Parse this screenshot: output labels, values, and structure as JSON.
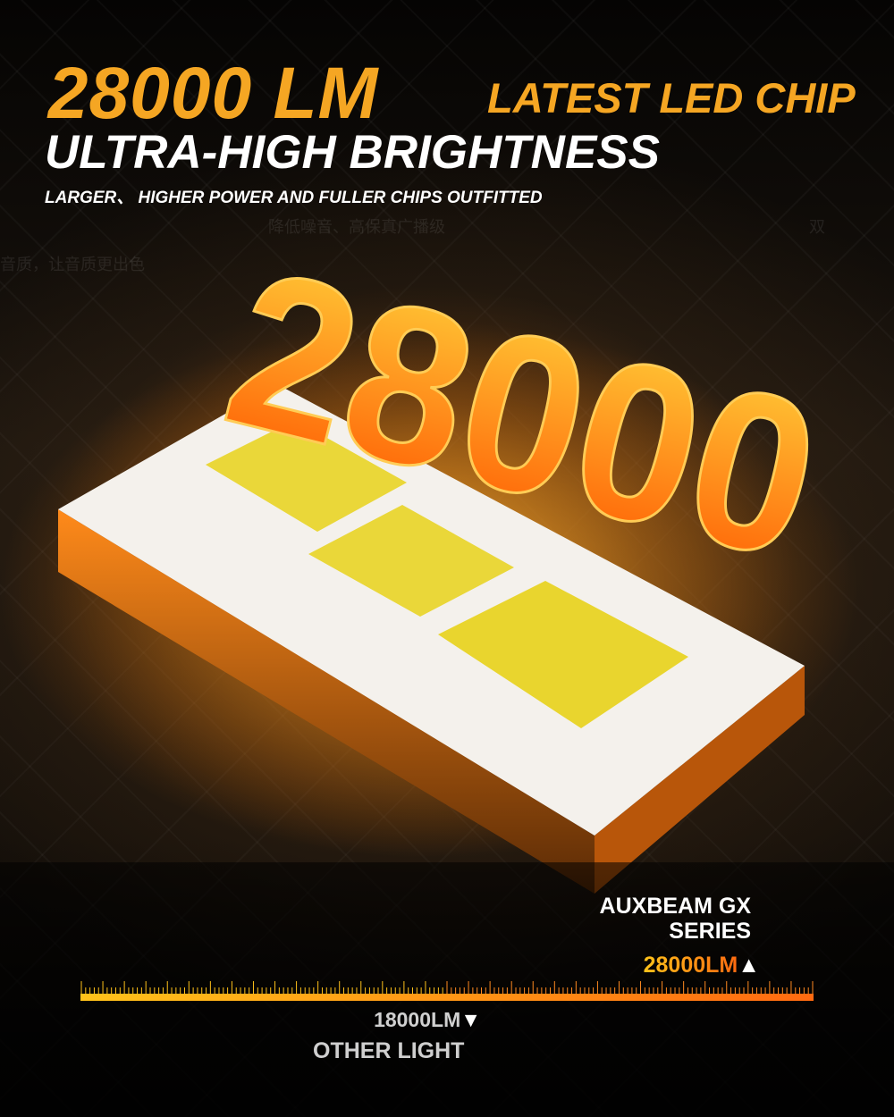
{
  "header": {
    "headline_number": "28000 LM",
    "headline_suffix": "LATEST LED CHIP",
    "subheadline": "ULTRA-HIGH BRIGHTNESS",
    "tagline": "LARGER、 HIGHER POWER AND FULLER CHIPS OUTFITTED"
  },
  "background_text": [
    "降低噪音、高保真广播级",
    "音质，让音质更出色",
    "双"
  ],
  "hero": {
    "number": "28000"
  },
  "comparison": {
    "brand_line1": "AUXBEAM GX",
    "brand_line2": "SERIES",
    "brand_value": "28000LM",
    "brand_marker": "▲",
    "other_value": "18000LM",
    "other_marker": "▼",
    "other_label": "OTHER LIGHT"
  },
  "colors": {
    "accent": "#f5a623",
    "bar_start": "#ffc21a",
    "bar_end": "#ff6a10",
    "text": "#ffffff",
    "muted": "#cfcfcf"
  }
}
